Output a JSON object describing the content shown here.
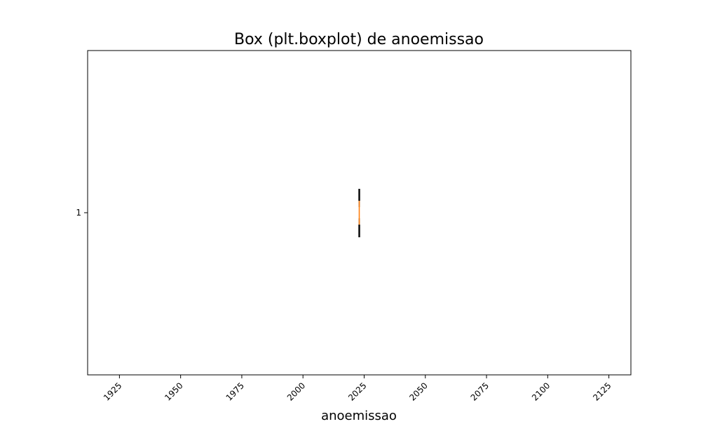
{
  "chart_data": {
    "type": "boxplot",
    "title": "Box (plt.boxplot) de anoemissao",
    "xlabel": "anoemissao",
    "ylabel": "",
    "orientation": "horizontal",
    "xlim": [
      1912,
      2134
    ],
    "xticks": [
      1925,
      1950,
      1975,
      2000,
      2025,
      2050,
      2075,
      2100,
      2125
    ],
    "xtick_labels": [
      "1925",
      "1950",
      "1975",
      "2000",
      "2025",
      "2050",
      "2075",
      "2100",
      "2125"
    ],
    "xtick_rotation_deg": 45,
    "yticks": [
      1
    ],
    "ytick_labels": [
      "1"
    ],
    "grid": false,
    "legend": "none",
    "boxes": [
      {
        "position": 1,
        "whisker_low": 2023,
        "q1": 2023,
        "median": 2023,
        "q3": 2023,
        "whisker_high": 2023,
        "outliers": []
      }
    ],
    "colors": {
      "box": "#000000",
      "median": "#ff7f0e",
      "axes": "#000000"
    }
  }
}
